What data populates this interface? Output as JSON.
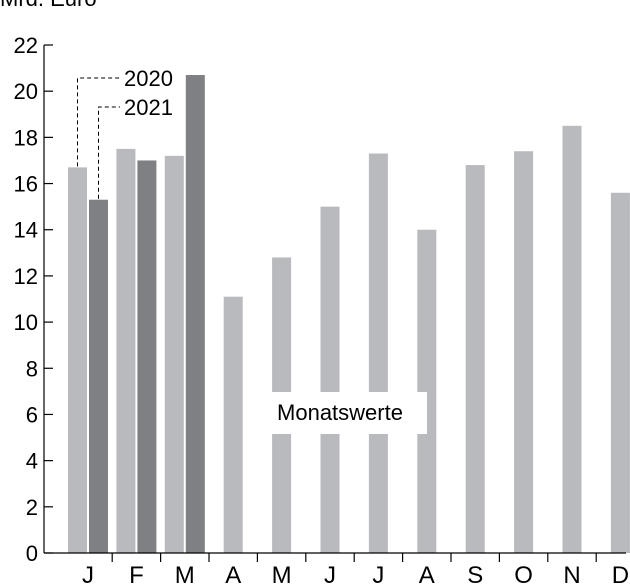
{
  "chart_data": {
    "type": "bar",
    "title": "Mrd. Euro",
    "categories": [
      "J",
      "F",
      "M",
      "A",
      "M",
      "J",
      "J",
      "A",
      "S",
      "O",
      "N",
      "D"
    ],
    "series": [
      {
        "name": "2020",
        "color": "#b9babd",
        "values": [
          16.7,
          17.5,
          17.2,
          11.1,
          12.8,
          15.0,
          17.3,
          14.0,
          16.8,
          17.4,
          18.5,
          15.6
        ]
      },
      {
        "name": "2021",
        "color": "#7f8084",
        "values": [
          15.3,
          17.0,
          20.7,
          null,
          null,
          null,
          null,
          null,
          null,
          null,
          null,
          null
        ]
      }
    ],
    "ylim": [
      0,
      22
    ],
    "yticks": [
      0,
      2,
      4,
      6,
      8,
      10,
      12,
      14,
      16,
      18,
      20,
      22
    ],
    "annotation": "Monatswerte",
    "grid": false,
    "legend": "top-left"
  }
}
